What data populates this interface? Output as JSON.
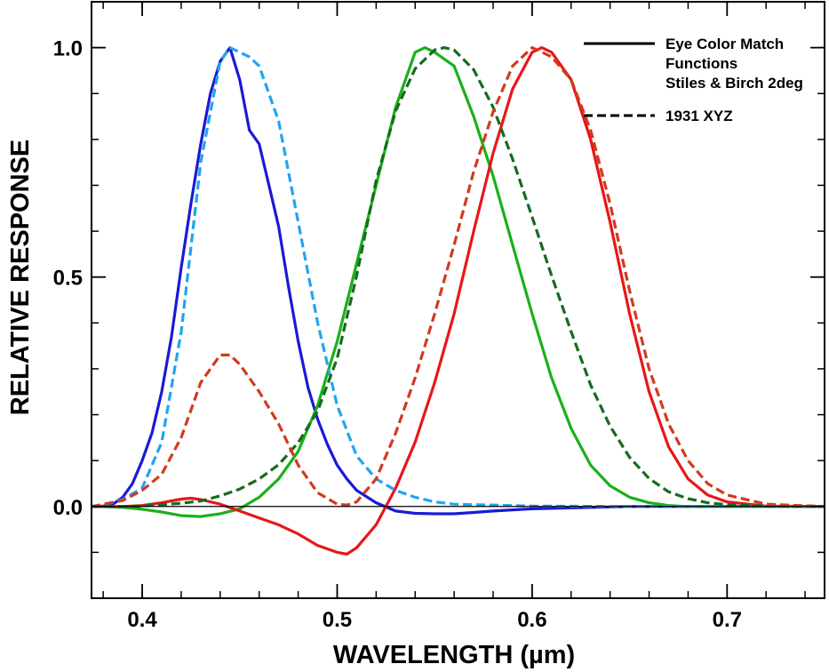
{
  "chart_data": {
    "type": "line",
    "title": "",
    "xlabel": "WAVELENGTH (µm)",
    "ylabel": "RELATIVE RESPONSE",
    "xlim": [
      0.374,
      0.75
    ],
    "ylim": [
      -0.2,
      1.1
    ],
    "x_ticks": [
      {
        "value": 0.4,
        "label": "0.4"
      },
      {
        "value": 0.5,
        "label": "0.5"
      },
      {
        "value": 0.6,
        "label": "0.6"
      },
      {
        "value": 0.7,
        "label": "0.7"
      }
    ],
    "y_ticks": [
      {
        "value": 0.0,
        "label": "0.0"
      },
      {
        "value": 0.5,
        "label": "0.5"
      },
      {
        "value": 1.0,
        "label": "1.0"
      }
    ],
    "x_minor_step": 0.02,
    "y_minor_step": 0.1,
    "legend": {
      "position": "top-right",
      "entries": [
        {
          "style": "solid",
          "lines": [
            "Eye Color Match",
            "Functions",
            "Stiles & Birch 2deg"
          ]
        },
        {
          "style": "dashed",
          "lines": [
            "1931 XYZ"
          ]
        }
      ]
    },
    "series": [
      {
        "name": "Stiles & Birch 2deg - blue",
        "style": "solid",
        "color": "#1a1ad6",
        "x": [
          0.374,
          0.38,
          0.385,
          0.39,
          0.395,
          0.4,
          0.405,
          0.41,
          0.415,
          0.42,
          0.425,
          0.43,
          0.435,
          0.44,
          0.445,
          0.45,
          0.455,
          0.46,
          0.465,
          0.47,
          0.475,
          0.48,
          0.485,
          0.49,
          0.495,
          0.5,
          0.505,
          0.51,
          0.52,
          0.53,
          0.54,
          0.55,
          0.56,
          0.57,
          0.58,
          0.6,
          0.65,
          0.7,
          0.75
        ],
        "y": [
          0,
          0.001,
          0.005,
          0.02,
          0.05,
          0.1,
          0.16,
          0.25,
          0.37,
          0.52,
          0.66,
          0.79,
          0.9,
          0.97,
          1.0,
          0.93,
          0.82,
          0.79,
          0.7,
          0.61,
          0.48,
          0.36,
          0.26,
          0.19,
          0.135,
          0.09,
          0.06,
          0.035,
          0.008,
          -0.01,
          -0.015,
          -0.016,
          -0.016,
          -0.013,
          -0.01,
          -0.005,
          0,
          0,
          0
        ]
      },
      {
        "name": "Stiles & Birch 2deg - green",
        "style": "solid",
        "color": "#1ab01a",
        "x": [
          0.374,
          0.38,
          0.39,
          0.4,
          0.41,
          0.42,
          0.43,
          0.44,
          0.45,
          0.46,
          0.47,
          0.48,
          0.49,
          0.5,
          0.51,
          0.52,
          0.53,
          0.535,
          0.54,
          0.545,
          0.55,
          0.56,
          0.57,
          0.58,
          0.59,
          0.6,
          0.61,
          0.62,
          0.63,
          0.64,
          0.65,
          0.66,
          0.67,
          0.68,
          0.7,
          0.75
        ],
        "y": [
          0,
          0,
          -0.002,
          -0.006,
          -0.012,
          -0.02,
          -0.022,
          -0.016,
          -0.005,
          0.02,
          0.06,
          0.12,
          0.22,
          0.36,
          0.53,
          0.7,
          0.87,
          0.93,
          0.99,
          1.0,
          0.99,
          0.96,
          0.85,
          0.72,
          0.57,
          0.42,
          0.28,
          0.17,
          0.09,
          0.045,
          0.02,
          0.008,
          0.002,
          0,
          0,
          0
        ]
      },
      {
        "name": "Stiles & Birch 2deg - red",
        "style": "solid",
        "color": "#e8161a",
        "x": [
          0.374,
          0.39,
          0.4,
          0.41,
          0.42,
          0.425,
          0.43,
          0.44,
          0.45,
          0.46,
          0.47,
          0.48,
          0.49,
          0.5,
          0.505,
          0.51,
          0.52,
          0.525,
          0.53,
          0.54,
          0.55,
          0.56,
          0.57,
          0.58,
          0.59,
          0.6,
          0.605,
          0.61,
          0.62,
          0.63,
          0.64,
          0.65,
          0.66,
          0.67,
          0.68,
          0.69,
          0.7,
          0.72,
          0.75
        ],
        "y": [
          0,
          0,
          0.002,
          0.008,
          0.016,
          0.018,
          0.015,
          0.005,
          -0.01,
          -0.025,
          -0.04,
          -0.06,
          -0.085,
          -0.1,
          -0.104,
          -0.09,
          -0.04,
          0.0,
          0.04,
          0.14,
          0.27,
          0.42,
          0.6,
          0.77,
          0.91,
          0.99,
          1.0,
          0.99,
          0.93,
          0.8,
          0.62,
          0.42,
          0.25,
          0.13,
          0.06,
          0.025,
          0.01,
          0.001,
          0
        ]
      },
      {
        "name": "1931 XYZ - z",
        "style": "dashed",
        "color": "#22a4f0",
        "x": [
          0.374,
          0.38,
          0.39,
          0.4,
          0.41,
          0.42,
          0.43,
          0.44,
          0.445,
          0.45,
          0.455,
          0.46,
          0.47,
          0.48,
          0.49,
          0.5,
          0.51,
          0.52,
          0.53,
          0.54,
          0.55,
          0.56,
          0.6,
          0.65,
          0.7,
          0.75
        ],
        "y": [
          0,
          0.003,
          0.015,
          0.04,
          0.14,
          0.38,
          0.75,
          0.97,
          1.0,
          0.99,
          0.98,
          0.96,
          0.84,
          0.62,
          0.4,
          0.22,
          0.11,
          0.06,
          0.035,
          0.02,
          0.01,
          0.005,
          0.001,
          0,
          0,
          0
        ]
      },
      {
        "name": "1931 XYZ - y",
        "style": "dashed",
        "color": "#156b1e",
        "x": [
          0.374,
          0.39,
          0.4,
          0.41,
          0.42,
          0.43,
          0.44,
          0.45,
          0.46,
          0.47,
          0.48,
          0.49,
          0.5,
          0.51,
          0.52,
          0.53,
          0.54,
          0.55,
          0.555,
          0.56,
          0.57,
          0.58,
          0.59,
          0.6,
          0.61,
          0.62,
          0.63,
          0.64,
          0.65,
          0.66,
          0.67,
          0.68,
          0.69,
          0.7,
          0.72,
          0.75
        ],
        "y": [
          0,
          0,
          0.001,
          0.004,
          0.007,
          0.012,
          0.023,
          0.038,
          0.06,
          0.091,
          0.139,
          0.208,
          0.323,
          0.503,
          0.71,
          0.862,
          0.954,
          0.995,
          1.0,
          0.995,
          0.952,
          0.87,
          0.757,
          0.631,
          0.503,
          0.381,
          0.265,
          0.175,
          0.107,
          0.061,
          0.032,
          0.017,
          0.008,
          0.004,
          0.001,
          0
        ]
      },
      {
        "name": "1931 XYZ - x",
        "style": "dashed",
        "color": "#d13a1e",
        "x": [
          0.374,
          0.39,
          0.4,
          0.41,
          0.42,
          0.43,
          0.44,
          0.445,
          0.45,
          0.46,
          0.47,
          0.48,
          0.49,
          0.5,
          0.505,
          0.51,
          0.52,
          0.53,
          0.54,
          0.55,
          0.56,
          0.57,
          0.58,
          0.59,
          0.6,
          0.61,
          0.62,
          0.63,
          0.64,
          0.65,
          0.66,
          0.67,
          0.68,
          0.69,
          0.7,
          0.72,
          0.75
        ],
        "y": [
          0,
          0.013,
          0.035,
          0.07,
          0.15,
          0.27,
          0.33,
          0.33,
          0.31,
          0.25,
          0.18,
          0.09,
          0.03,
          0.005,
          0.003,
          0.01,
          0.06,
          0.16,
          0.28,
          0.42,
          0.57,
          0.73,
          0.86,
          0.96,
          1.0,
          0.98,
          0.93,
          0.82,
          0.66,
          0.47,
          0.3,
          0.18,
          0.1,
          0.05,
          0.025,
          0.005,
          0
        ]
      }
    ]
  }
}
